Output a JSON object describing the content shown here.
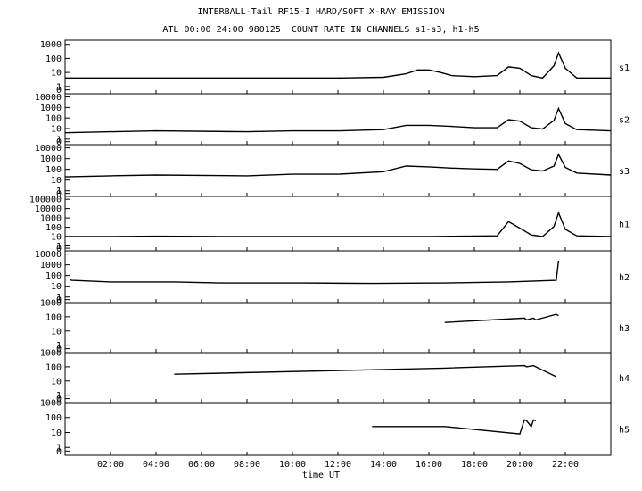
{
  "title": "INTERBALL-Tail RF15-I HARD/SOFT X-RAY EMISSION",
  "subtitle": "ATL 00:00 24:00 980125  COUNT RATE IN CHANNELS s1-s3, h1-h5",
  "colors": {
    "background": "#ffffff",
    "ink": "#000000"
  },
  "chart_data": {
    "type": "line",
    "title": "INTERBALL-Tail RF15-I HARD/SOFT X-RAY EMISSION",
    "subtitle": "ATL 00:00 24:00 980125  COUNT RATE IN CHANNELS s1-s3, h1-h5",
    "xlabel": "time UT",
    "x_ticks": [
      "02:00",
      "04:00",
      "06:00",
      "08:00",
      "10:00",
      "12:00",
      "14:00",
      "16:00",
      "18:00",
      "20:00",
      "22:00"
    ],
    "xlim": [
      0,
      24
    ],
    "yscale": "log",
    "grid": false,
    "panels": [
      {
        "name": "s1",
        "yticks": [
          "0",
          "1",
          "10",
          "100",
          "1000"
        ],
        "ylim": [
          0.3,
          2000
        ],
        "x": [
          0,
          4,
          8,
          12,
          14,
          15,
          15.5,
          16,
          16.5,
          17,
          18,
          19,
          19.5,
          20,
          20.5,
          21,
          21.5,
          21.7,
          22,
          22.5,
          24
        ],
        "y": [
          4,
          4,
          4,
          4,
          4.5,
          8,
          15,
          15,
          10,
          6,
          5,
          6,
          25,
          20,
          6,
          4,
          30,
          250,
          20,
          4,
          4
        ]
      },
      {
        "name": "s2",
        "yticks": [
          "0",
          "1",
          "10",
          "100",
          "1000",
          "10000"
        ],
        "ylim": [
          0.3,
          20000
        ],
        "x": [
          0,
          2,
          4,
          8,
          10,
          12,
          14,
          15,
          16,
          17,
          18,
          19,
          19.5,
          20,
          20.5,
          21,
          21.5,
          21.7,
          22,
          22.5,
          24
        ],
        "y": [
          4,
          5,
          6,
          5,
          6,
          6,
          8,
          20,
          20,
          16,
          12,
          12,
          70,
          50,
          12,
          9,
          60,
          800,
          30,
          8,
          6
        ]
      },
      {
        "name": "s3",
        "yticks": [
          "0",
          "1",
          "10",
          "100",
          "1000",
          "10000"
        ],
        "ylim": [
          0.3,
          20000
        ],
        "x": [
          0,
          2,
          4,
          8,
          10,
          12,
          14,
          15,
          16,
          17,
          18,
          19,
          19.5,
          20,
          20.5,
          21,
          21.5,
          21.7,
          22,
          22.5,
          24
        ],
        "y": [
          20,
          25,
          30,
          25,
          35,
          35,
          60,
          200,
          170,
          130,
          110,
          100,
          600,
          350,
          90,
          70,
          200,
          2500,
          150,
          45,
          30
        ]
      },
      {
        "name": "h1",
        "yticks": [
          "0",
          "1",
          "10",
          "100",
          "1000",
          "10000",
          "100000"
        ],
        "ylim": [
          0.3,
          200000
        ],
        "x": [
          0,
          2,
          4,
          8,
          12,
          16,
          19,
          19.5,
          20,
          20.5,
          21,
          21.5,
          21.7,
          22,
          22.5,
          24
        ],
        "y": [
          10,
          10,
          11,
          10,
          10,
          10,
          12,
          400,
          80,
          15,
          10,
          120,
          3500,
          60,
          12,
          10
        ]
      },
      {
        "name": "h2",
        "yticks": [
          "0",
          "1",
          "10",
          "100",
          "1000",
          "10000"
        ],
        "ylim": [
          0.3,
          20000
        ],
        "x": [
          0.2,
          0.3,
          2,
          4.8,
          6.8,
          10.4,
          13.5,
          16.7,
          19.5,
          21.6,
          21.7
        ],
        "y": [
          40,
          35,
          25,
          25,
          20,
          20,
          18,
          20,
          25,
          35,
          2500
        ]
      },
      {
        "name": "h3",
        "yticks": [
          "0",
          "1",
          "10",
          "100",
          "1000"
        ],
        "ylim": [
          0.3,
          1000
        ],
        "x": [
          16.7,
          20.2,
          20.3,
          20.6,
          20.7,
          21.6,
          21.7
        ],
        "y": [
          40,
          80,
          60,
          80,
          60,
          150,
          120
        ]
      },
      {
        "name": "h4",
        "yticks": [
          "0",
          "1",
          "10",
          "100",
          "1000"
        ],
        "ylim": [
          0.3,
          1000
        ],
        "x": [
          4.8,
          16.7,
          20.2,
          20.3,
          20.6,
          20.7,
          21.6
        ],
        "y": [
          30,
          80,
          120,
          100,
          120,
          100,
          20
        ]
      },
      {
        "name": "h5",
        "yticks": [
          "0",
          "1",
          "10",
          "100",
          "1000"
        ],
        "ylim": [
          0.3,
          1000
        ],
        "x": [
          13.5,
          16.7,
          20.0,
          20.2,
          20.3,
          20.5,
          20.6,
          20.7
        ],
        "y": [
          25,
          25,
          8,
          70,
          60,
          25,
          70,
          60
        ]
      }
    ]
  }
}
